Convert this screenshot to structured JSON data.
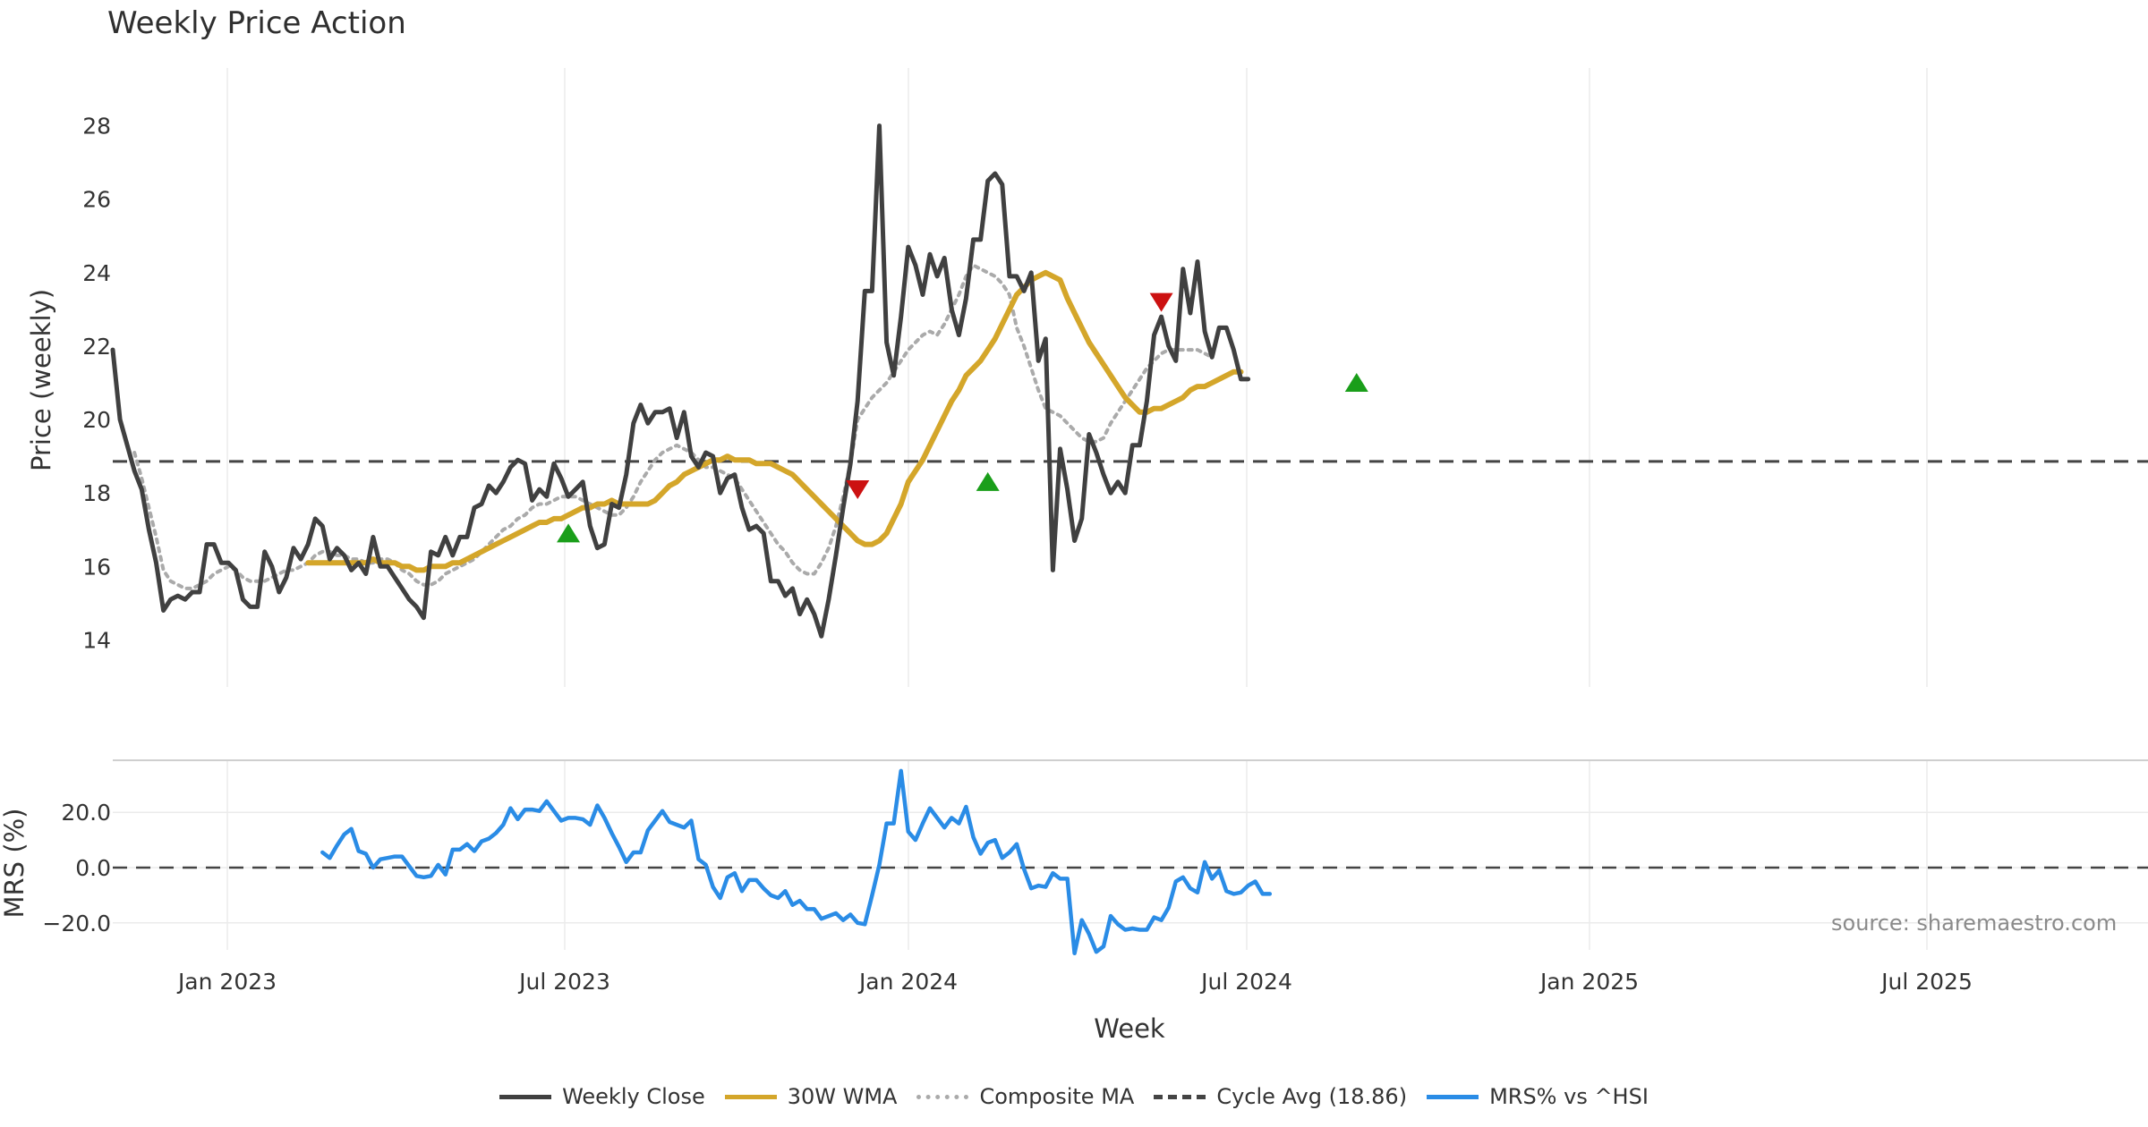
{
  "chart_data": {
    "type": "line",
    "title": "Weekly Price Action",
    "source": "source: sharemaestro.com",
    "xlabel": "Week",
    "x_ticks": [
      "Jan 2023",
      "Jul 2023",
      "Jan 2024",
      "Jul 2024",
      "Jan 2025",
      "Jul 2025"
    ],
    "price_panel": {
      "ylabel": "Price (weekly)",
      "ylim": [
        13.4,
        28.6
      ],
      "y_ticks": [
        14,
        16,
        18,
        20,
        22,
        24,
        26,
        28
      ],
      "cycle_avg": 18.86,
      "series": [
        {
          "name": "Weekly Close",
          "color": "#404040",
          "style": "solid",
          "start_week": 0,
          "values": [
            21.9,
            20.0,
            19.3,
            18.6,
            18.1,
            17.0,
            16.1,
            14.8,
            15.1,
            15.2,
            15.1,
            15.3,
            15.3,
            16.6,
            16.6,
            16.1,
            16.1,
            15.9,
            15.1,
            14.9,
            14.9,
            16.4,
            16.0,
            15.3,
            15.7,
            16.5,
            16.2,
            16.6,
            17.3,
            17.1,
            16.2,
            16.5,
            16.3,
            15.9,
            16.1,
            15.8,
            16.8,
            16.0,
            16.0,
            15.7,
            15.4,
            15.1,
            14.9,
            14.6,
            16.4,
            16.3,
            16.8,
            16.3,
            16.8,
            16.8,
            17.6,
            17.7,
            18.2,
            18.0,
            18.3,
            18.7,
            18.9,
            18.8,
            17.8,
            18.1,
            17.9,
            18.8,
            18.4,
            17.9,
            18.1,
            18.3,
            17.1,
            16.5,
            16.6,
            17.7,
            17.6,
            18.5,
            19.9,
            20.4,
            19.9,
            20.2,
            20.2,
            20.3,
            19.5,
            20.2,
            19.0,
            18.7,
            19.1,
            19.0,
            18.0,
            18.4,
            18.5,
            17.6,
            17.0,
            17.1,
            16.9,
            15.6,
            15.6,
            15.2,
            15.4,
            14.7,
            15.1,
            14.7,
            14.1,
            15.1,
            16.3,
            17.6,
            18.8,
            20.5,
            23.5,
            23.5,
            28.0,
            22.1,
            21.2,
            22.8,
            24.7,
            24.2,
            23.4,
            24.5,
            23.9,
            24.4,
            23.0,
            22.3,
            23.3,
            24.9,
            24.9,
            26.5,
            26.7,
            26.4,
            23.9,
            23.9,
            23.5,
            24.0,
            21.6,
            22.2,
            15.9,
            19.2,
            18.1,
            16.7,
            17.3,
            19.6,
            19.1,
            18.5,
            18.0,
            18.3,
            18.0,
            19.3,
            19.3,
            20.5,
            22.3,
            22.8,
            22.0,
            21.6,
            24.1,
            22.9,
            24.3,
            22.4,
            21.7,
            22.5,
            22.5,
            21.9,
            21.1,
            21.1
          ]
        },
        {
          "name": "30W WMA",
          "color": "#D4A62A",
          "style": "solid",
          "start_week": 27,
          "values": [
            16.1,
            16.1,
            16.1,
            16.1,
            16.1,
            16.1,
            16.1,
            16.1,
            16.1,
            16.2,
            16.1,
            16.1,
            16.1,
            16.0,
            16.0,
            15.9,
            15.9,
            16.0,
            16.0,
            16.0,
            16.1,
            16.1,
            16.2,
            16.3,
            16.4,
            16.5,
            16.6,
            16.7,
            16.8,
            16.9,
            17.0,
            17.1,
            17.2,
            17.2,
            17.3,
            17.3,
            17.4,
            17.5,
            17.6,
            17.6,
            17.7,
            17.7,
            17.8,
            17.7,
            17.7,
            17.7,
            17.7,
            17.7,
            17.8,
            18.0,
            18.2,
            18.3,
            18.5,
            18.6,
            18.7,
            18.8,
            18.9,
            18.9,
            19.0,
            18.9,
            18.9,
            18.9,
            18.8,
            18.8,
            18.8,
            18.7,
            18.6,
            18.5,
            18.3,
            18.1,
            17.9,
            17.7,
            17.5,
            17.3,
            17.1,
            16.9,
            16.7,
            16.6,
            16.6,
            16.7,
            16.9,
            17.3,
            17.7,
            18.3,
            18.6,
            18.9,
            19.3,
            19.7,
            20.1,
            20.5,
            20.8,
            21.2,
            21.4,
            21.6,
            21.9,
            22.2,
            22.6,
            23.0,
            23.4,
            23.6,
            23.8,
            23.9,
            24.0,
            23.9,
            23.8,
            23.3,
            22.9,
            22.5,
            22.1,
            21.8,
            21.5,
            21.2,
            20.9,
            20.6,
            20.4,
            20.2,
            20.2,
            20.3,
            20.3,
            20.4,
            20.5,
            20.6,
            20.8,
            20.9,
            20.9,
            21.0,
            21.1,
            21.2,
            21.3,
            21.3
          ]
        },
        {
          "name": "Composite MA",
          "color": "#AAAAAA",
          "style": "dotted",
          "start_week": 3,
          "values": [
            19.1,
            18.4,
            17.6,
            16.8,
            15.9,
            15.6,
            15.5,
            15.4,
            15.4,
            15.5,
            15.6,
            15.8,
            15.9,
            16.0,
            15.9,
            15.7,
            15.6,
            15.6,
            15.6,
            15.7,
            15.8,
            15.9,
            15.9,
            16.0,
            16.1,
            16.3,
            16.4,
            16.4,
            16.3,
            16.3,
            16.2,
            16.2,
            16.1,
            16.1,
            16.2,
            16.2,
            16.1,
            15.9,
            15.8,
            15.6,
            15.5,
            15.5,
            15.6,
            15.8,
            15.9,
            16.0,
            16.1,
            16.2,
            16.4,
            16.6,
            16.8,
            17.0,
            17.1,
            17.3,
            17.4,
            17.6,
            17.7,
            17.7,
            17.8,
            17.9,
            17.9,
            17.9,
            17.8,
            17.7,
            17.6,
            17.5,
            17.4,
            17.4,
            17.6,
            17.9,
            18.3,
            18.6,
            18.9,
            19.1,
            19.2,
            19.3,
            19.2,
            19.1,
            18.9,
            18.7,
            18.7,
            18.6,
            18.5,
            18.4,
            18.1,
            17.8,
            17.5,
            17.2,
            16.9,
            16.6,
            16.4,
            16.1,
            15.9,
            15.8,
            15.8,
            16.1,
            16.5,
            17.1,
            17.9,
            18.8,
            20.0,
            20.3,
            20.6,
            20.8,
            21.0,
            21.3,
            21.6,
            21.9,
            22.1,
            22.3,
            22.4,
            22.3,
            22.6,
            23.0,
            23.4,
            23.9,
            24.2,
            24.1,
            24.0,
            23.9,
            23.7,
            23.4,
            22.5,
            22.0,
            21.4,
            20.8,
            20.3,
            20.2,
            20.1,
            19.9,
            19.7,
            19.5,
            19.4,
            19.4,
            19.5,
            19.9,
            20.2,
            20.5,
            20.8,
            21.1,
            21.4,
            21.6,
            21.8,
            21.9,
            21.9,
            21.9,
            21.9,
            21.9,
            21.8,
            21.7
          ]
        },
        {
          "name": "Cycle Avg (18.86)",
          "color": "#444444",
          "style": "dashed"
        }
      ],
      "buy_signals": [
        {
          "week": 63,
          "value": 16.9
        },
        {
          "week": 121,
          "value": 18.3
        },
        {
          "week": 172,
          "value": 21.0
        }
      ],
      "sell_signals": [
        {
          "week": 103,
          "value": 18.1
        },
        {
          "week": 145,
          "value": 23.2
        }
      ]
    },
    "mrs_panel": {
      "ylabel": "MRS (%)",
      "ylim": [
        -30,
        35
      ],
      "y_ticks": [
        20.0,
        0.0,
        -20.0
      ],
      "y_tick_labels": [
        "20.0",
        "0.0",
        "−20.0"
      ],
      "series": [
        {
          "name": "MRS% vs ^HSI",
          "color": "#2A8CE6",
          "style": "solid",
          "start_week": 29,
          "values": [
            5.5,
            3.5,
            8.0,
            12.0,
            14.0,
            6.0,
            5.0,
            0.0,
            3.0,
            3.5,
            4.0,
            4.0,
            0.5,
            -3.0,
            -3.5,
            -3.0,
            1.0,
            -2.5,
            6.5,
            6.5,
            8.5,
            6.0,
            9.5,
            10.5,
            12.5,
            15.5,
            21.5,
            17.5,
            21.0,
            21.0,
            20.5,
            24.0,
            20.5,
            17.0,
            18.0,
            18.0,
            17.5,
            15.5,
            22.5,
            18.0,
            12.5,
            7.5,
            2.0,
            5.5,
            5.5,
            13.5,
            17.0,
            20.5,
            16.5,
            15.5,
            14.5,
            17.0,
            3.0,
            1.0,
            -7.0,
            -11.0,
            -3.5,
            -2.0,
            -8.5,
            -4.5,
            -4.5,
            -7.5,
            -10.0,
            -11.0,
            -8.5,
            -13.5,
            -12.0,
            -15.0,
            -15.0,
            -18.5,
            -17.5,
            -16.5,
            -19.0,
            -17.0,
            -20.0,
            -20.5,
            -10.0,
            1.0,
            16.0,
            16.0,
            35.0,
            13.0,
            10.0,
            16.0,
            21.5,
            18.0,
            14.5,
            18.0,
            16.0,
            22.0,
            11.0,
            5.0,
            9.0,
            10.0,
            3.5,
            5.5,
            8.5,
            -0.5,
            -7.5,
            -6.5,
            -7.0,
            -2.0,
            -4.0,
            -4.0,
            -31.0,
            -19.0,
            -24.0,
            -30.5,
            -28.5,
            -17.5,
            -20.5,
            -22.5,
            -22.0,
            -22.5,
            -22.5,
            -18.0,
            -19.0,
            -14.5,
            -5.0,
            -3.5,
            -7.5,
            -9.0,
            2.0,
            -4.0,
            -1.0,
            -8.5,
            -9.5,
            -9.0,
            -6.5,
            -5.0,
            -9.5,
            -9.5
          ]
        }
      ]
    },
    "legend": [
      {
        "label": "Weekly Close",
        "color": "#404040",
        "style": "solid"
      },
      {
        "label": "30W WMA",
        "color": "#D4A62A",
        "style": "solid"
      },
      {
        "label": "Composite MA",
        "color": "#AAAAAA",
        "style": "dotted"
      },
      {
        "label": "Cycle Avg (18.86)",
        "color": "#444444",
        "style": "dashed"
      },
      {
        "label": "MRS% vs ^HSI",
        "color": "#2A8CE6",
        "style": "solid"
      }
    ]
  }
}
